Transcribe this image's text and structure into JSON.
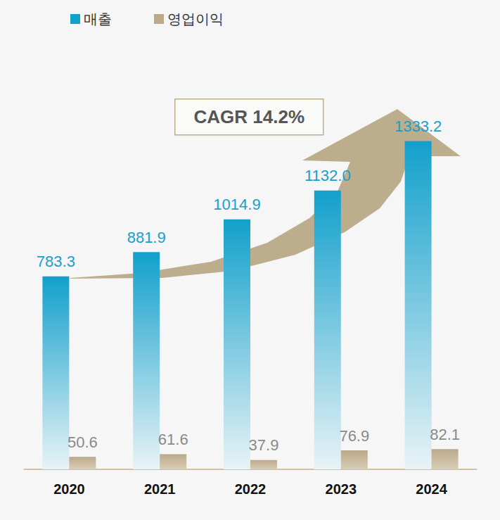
{
  "chart_data": {
    "type": "bar",
    "categories": [
      "2020",
      "2021",
      "2022",
      "2023",
      "2024"
    ],
    "series": [
      {
        "name": "매출",
        "color": "#12a0cc",
        "values": [
          783.3,
          881.9,
          1014.9,
          1132.0,
          1333.2
        ],
        "value_labels": [
          "783.3",
          "881.9",
          "1014.9",
          "1132.0",
          "1333.2"
        ]
      },
      {
        "name": "영업이익",
        "color": "#bba98a",
        "values": [
          50.6,
          61.6,
          37.9,
          76.9,
          82.1
        ]
      }
    ],
    "annotation": "CAGR 14.2%",
    "ylim": [
      0,
      1700
    ],
    "legend": "top-left",
    "data_labels": true,
    "tick_labels": "x",
    "grid": false
  }
}
